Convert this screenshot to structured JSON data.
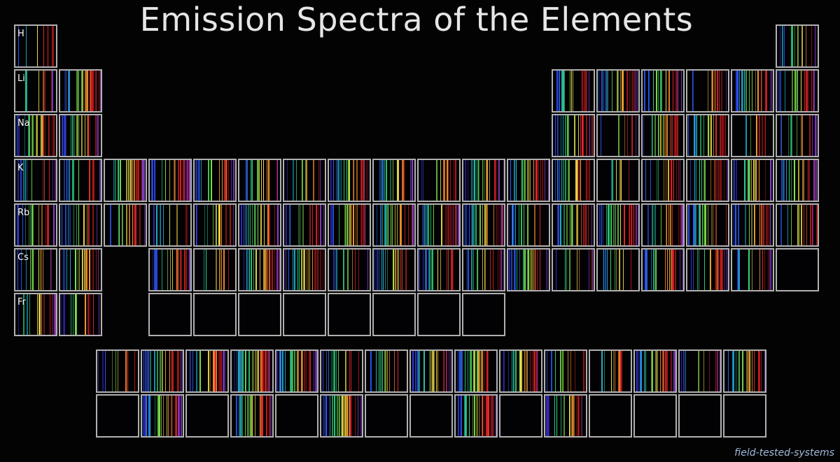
{
  "title": "Emission Spectra of the Elements",
  "credit": "field-tested-systems",
  "alkali_labels": [
    "H",
    "Li",
    "Na",
    "K",
    "Rb",
    "Cs",
    "Fr"
  ],
  "palette": [
    "#3a2fd0",
    "#2e5bff",
    "#25b7d8",
    "#2fd07a",
    "#7fe04a",
    "#f2e24a",
    "#ff9a2a",
    "#e8262a",
    "#b01818",
    "#8a3fd0"
  ],
  "colors": {
    "background": "#030303",
    "grid_border": "#b0b0b0",
    "title": "#e6e6e6"
  }
}
